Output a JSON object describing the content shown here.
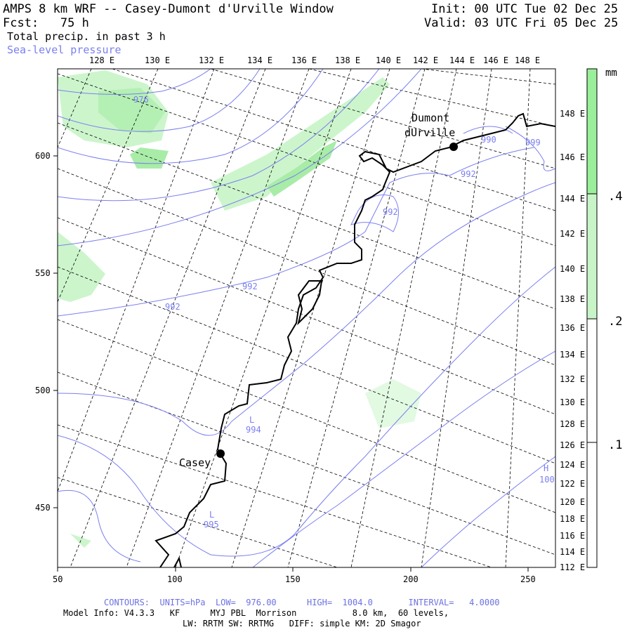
{
  "header": {
    "title": "AMPS 8 km WRF -- Casey-Dumont d'Urville Window",
    "forecast": "Fcst:   75 h",
    "init": "Init: 00 UTC Tue 02 Dec 25",
    "valid": "Valid: 03 UTC Fri 05 Dec 25",
    "field1": "Total precip. in past 3 h",
    "field2": "Sea-level pressure"
  },
  "map": {
    "top_lon_labels": [
      "128 E",
      "130 E",
      "132 E",
      "134 E",
      "136 E",
      "138 E",
      "140 E",
      "142 E",
      "144 E",
      "146 E",
      "148 E"
    ],
    "right_lat_labels": [
      "148 E",
      "146 E",
      "144 E",
      "142 E",
      "140 E",
      "138 E",
      "136 E",
      "134 E",
      "132 E",
      "130 E",
      "128 E",
      "126 E",
      "124 E",
      "122 E",
      "120 E",
      "118 E",
      "116 E",
      "114 E",
      "112 E"
    ],
    "x_ticks": [
      "50",
      "100",
      "150",
      "200",
      "250"
    ],
    "y_ticks": [
      "600",
      "550",
      "500",
      "450"
    ],
    "stations": [
      {
        "name": "Casey"
      },
      {
        "name": "Dumont"
      },
      {
        "name": "dUrville"
      }
    ],
    "pressure_labels": [
      "976",
      "992",
      "992",
      "992",
      "990",
      "992",
      "994",
      "995",
      "999",
      "100"
    ],
    "low_markers": [
      "L",
      "L"
    ],
    "high_markers": [
      "H"
    ],
    "colors": {
      "precip_light": "#ccf5cc",
      "precip_mid": "#aeeeae",
      "precip_dark": "#90e090",
      "isobar": "#7b7ff0",
      "coast": "#000000",
      "grid": "#000000"
    }
  },
  "colorbar": {
    "unit": "mm",
    "levels": [
      ".4",
      ".2",
      ".1"
    ],
    "colors": [
      "#9af09a",
      "#c8f5c8",
      "#ffffff"
    ]
  },
  "footer": {
    "contours": "CONTOURS:  UNITS=hPa  LOW=  976.00      HIGH=  1004.0       INTERVAL=   4.0000",
    "model_info": "Model Info: V4.3.3   KF      MYJ PBL  Morrison           8.0 km,  60 levels,",
    "physics": "LW: RRTM SW: RRTMG   DIFF: simple KM: 2D Smagor"
  }
}
